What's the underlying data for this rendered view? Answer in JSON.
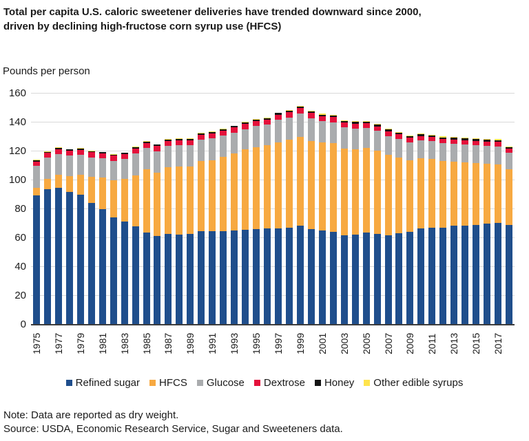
{
  "header": {
    "title_line1": "Total per capita U.S. caloric sweetener deliveries have trended downward since 2000,",
    "title_line2": "driven by declining high-fructose corn syrup use (HFCS)"
  },
  "footer": {
    "note": "Note: Data are reported as dry weight.",
    "source": "Source: USDA, Economic Research Service, Sugar and Sweeteners data."
  },
  "colors": {
    "text": "#1a1a1a",
    "gridline": "#d9d9d9",
    "axis_line": "#3c3c3c"
  },
  "chart_data": {
    "type": "bar",
    "stacked": true,
    "title": "Total per capita U.S. caloric sweetener deliveries have trended downward since 2000, driven by declining high-fructose corn syrup use (HFCS)",
    "ylabel": "Pounds per person",
    "xlabel": "",
    "ylim": [
      0,
      160
    ],
    "ytick_step": 20,
    "grid": true,
    "legend_position": "bottom",
    "years": [
      1975,
      1976,
      1977,
      1978,
      1979,
      1980,
      1981,
      1982,
      1983,
      1984,
      1985,
      1986,
      1987,
      1988,
      1989,
      1990,
      1991,
      1992,
      1993,
      1994,
      1995,
      1996,
      1997,
      1998,
      1999,
      2000,
      2001,
      2002,
      2003,
      2004,
      2005,
      2006,
      2007,
      2008,
      2009,
      2010,
      2011,
      2012,
      2013,
      2014,
      2015,
      2016,
      2017,
      2018
    ],
    "xtick_labels": [
      "1975",
      "1977",
      "1979",
      "1981",
      "1983",
      "1985",
      "1987",
      "1989",
      "1991",
      "1993",
      "1995",
      "1997",
      "1999",
      "2001",
      "2003",
      "2005",
      "2007",
      "2009",
      "2011",
      "2013",
      "2015",
      "2017"
    ],
    "series": [
      {
        "name": "Refined sugar",
        "color": "#1f4e8c",
        "values": [
          89.2,
          93.4,
          94.2,
          91.4,
          89.3,
          83.6,
          79.4,
          73.7,
          71.1,
          67.6,
          63.2,
          60.9,
          62.5,
          61.8,
          62.3,
          64.4,
          64.1,
          64.4,
          64.7,
          65.1,
          65.5,
          66.1,
          66.3,
          66.6,
          67.9,
          65.6,
          64.8,
          64.0,
          61.5,
          61.7,
          63.3,
          62.4,
          61.4,
          62.9,
          63.9,
          66.1,
          66.9,
          66.8,
          67.9,
          68.2,
          68.8,
          69.3,
          69.8,
          68.5
        ]
      },
      {
        "name": "HFCS",
        "color": "#f7a941",
        "values": [
          4.9,
          7.2,
          9.2,
          11.0,
          14.1,
          18.1,
          22.0,
          25.6,
          29.6,
          35.3,
          43.9,
          44.0,
          46.2,
          47.1,
          46.8,
          48.6,
          49.2,
          51.5,
          53.5,
          56.0,
          56.8,
          57.6,
          59.4,
          61.0,
          61.8,
          61.2,
          60.7,
          61.4,
          60.0,
          59.3,
          58.4,
          57.6,
          55.9,
          52.3,
          49.6,
          48.6,
          47.4,
          45.9,
          44.3,
          43.5,
          42.6,
          41.8,
          40.5,
          38.5
        ]
      },
      {
        "name": "Glucose",
        "color": "#aaacae",
        "values": [
          15.3,
          14.5,
          14.4,
          14.3,
          13.9,
          13.7,
          13.4,
          13.6,
          13.4,
          15.0,
          14.7,
          14.8,
          14.6,
          14.8,
          14.5,
          14.7,
          15.3,
          14.7,
          14.3,
          13.9,
          14.8,
          14.5,
          15.7,
          15.5,
          16.0,
          15.6,
          14.9,
          14.3,
          14.5,
          14.4,
          14.0,
          13.6,
          12.9,
          12.9,
          12.4,
          12.4,
          12.2,
          12.4,
          12.5,
          12.6,
          12.5,
          12.3,
          12.6,
          11.5
        ]
      },
      {
        "name": "Dextrose",
        "color": "#e4113b",
        "values": [
          3.2,
          3.3,
          3.4,
          3.4,
          3.4,
          3.5,
          3.5,
          3.6,
          3.6,
          3.7,
          3.6,
          3.6,
          3.5,
          3.6,
          3.5,
          3.4,
          3.5,
          3.4,
          3.5,
          3.4,
          3.5,
          3.4,
          3.6,
          3.6,
          3.8,
          3.7,
          3.6,
          3.5,
          3.5,
          3.4,
          3.4,
          3.3,
          3.3,
          3.2,
          3.1,
          3.0,
          3.0,
          3.0,
          3.0,
          3.0,
          3.0,
          3.0,
          3.1,
          2.8
        ]
      },
      {
        "name": "Honey",
        "color": "#141414",
        "values": [
          0.9,
          0.9,
          0.9,
          0.9,
          0.9,
          0.8,
          0.8,
          0.9,
          0.9,
          0.9,
          0.9,
          1.0,
          1.0,
          1.0,
          1.0,
          1.0,
          1.0,
          1.0,
          1.0,
          1.0,
          1.0,
          1.0,
          1.0,
          1.0,
          1.0,
          1.0,
          1.0,
          1.0,
          1.0,
          1.1,
          1.1,
          1.1,
          1.1,
          1.1,
          1.1,
          1.2,
          1.2,
          1.2,
          1.3,
          1.3,
          1.3,
          1.3,
          1.3,
          1.2
        ]
      },
      {
        "name": "Other edible syrups",
        "color": "#ffe44d",
        "values": [
          0.2,
          0.2,
          0.2,
          0.2,
          0.2,
          0.2,
          0.2,
          0.2,
          0.2,
          0.2,
          0.2,
          0.2,
          0.3,
          0.3,
          0.4,
          0.4,
          0.4,
          0.4,
          0.4,
          0.4,
          0.4,
          0.4,
          0.4,
          0.4,
          0.5,
          0.5,
          0.5,
          0.5,
          0.5,
          0.5,
          0.5,
          0.5,
          0.5,
          0.5,
          0.5,
          0.5,
          0.5,
          0.5,
          0.5,
          0.5,
          0.6,
          0.6,
          0.6,
          0.5
        ]
      }
    ]
  }
}
